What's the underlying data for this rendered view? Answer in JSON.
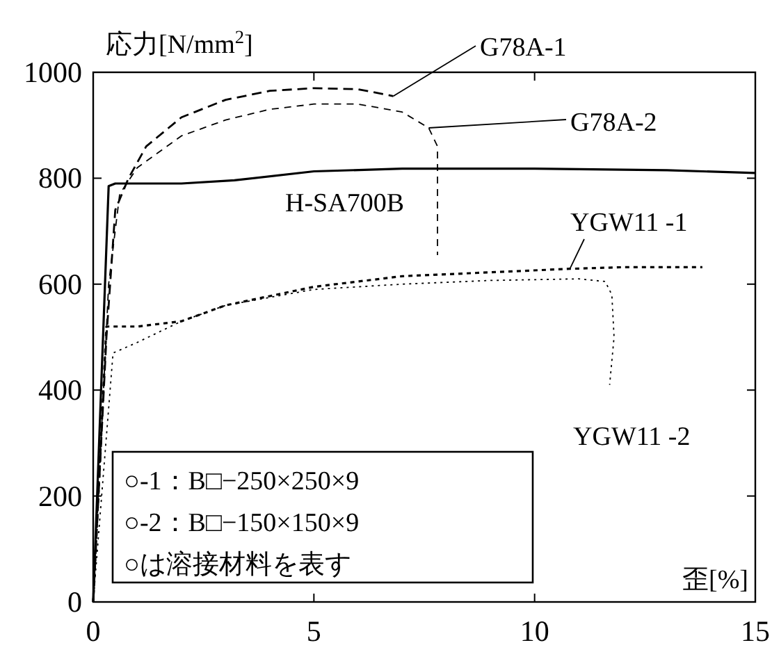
{
  "chart_data": {
    "type": "line",
    "xlabel": "歪[%]",
    "ylabel": "応力[N/mm$^{2}$]",
    "xlim": [
      0,
      15
    ],
    "ylim": [
      0,
      1000
    ],
    "xticks": [
      0,
      5,
      10,
      15
    ],
    "yticks": [
      0,
      200,
      400,
      600,
      800,
      1000
    ],
    "grid": false,
    "legend": false,
    "series": [
      {
        "name": "H-SA700B",
        "color": "#000000",
        "line_style": "solid",
        "x": [
          0,
          0.35,
          0.5,
          1,
          2,
          3.2,
          5,
          7,
          10,
          13,
          15
        ],
        "values": [
          0,
          785,
          790,
          790,
          790,
          796,
          813,
          818,
          818,
          815,
          810
        ]
      },
      {
        "name": "G78A-1",
        "color": "#000000",
        "line_style": "dashed",
        "x": [
          0,
          0.3,
          0.5,
          0.8,
          1.2,
          2,
          3,
          4,
          5,
          6,
          6.8
        ],
        "values": [
          0,
          500,
          740,
          800,
          860,
          915,
          948,
          965,
          970,
          968,
          955
        ]
      },
      {
        "name": "G78A-2",
        "color": "#000000",
        "line_style": "dashed",
        "x": [
          0,
          0.35,
          0.6,
          1,
          2,
          3,
          4,
          5,
          6,
          7,
          7.6,
          7.8,
          7.8,
          7.8
        ],
        "values": [
          0,
          600,
          770,
          820,
          880,
          910,
          930,
          940,
          940,
          925,
          895,
          860,
          780,
          655
        ]
      },
      {
        "name": "YGW11 -1",
        "color": "#000000",
        "line_style": "dotted",
        "x": [
          0,
          0.3,
          0.5,
          1,
          2,
          3,
          5,
          7,
          10.8,
          12,
          13.8
        ],
        "values": [
          0,
          520,
          520,
          520,
          530,
          560,
          595,
          615,
          629,
          632,
          632
        ]
      },
      {
        "name": "YGW11 -2",
        "color": "#000000",
        "line_style": "dotted",
        "x": [
          0,
          0.45,
          1,
          2,
          3,
          5,
          7,
          9,
          11,
          11.6,
          11.75,
          11.8,
          11.7
        ],
        "values": [
          0,
          470,
          490,
          530,
          560,
          590,
          600,
          607,
          610,
          605,
          580,
          500,
          410
        ]
      }
    ],
    "annotations": [
      "○-1：B□−250×250×9",
      "○-2：B□−150×150×9",
      "○は溶接材料を表す"
    ]
  }
}
